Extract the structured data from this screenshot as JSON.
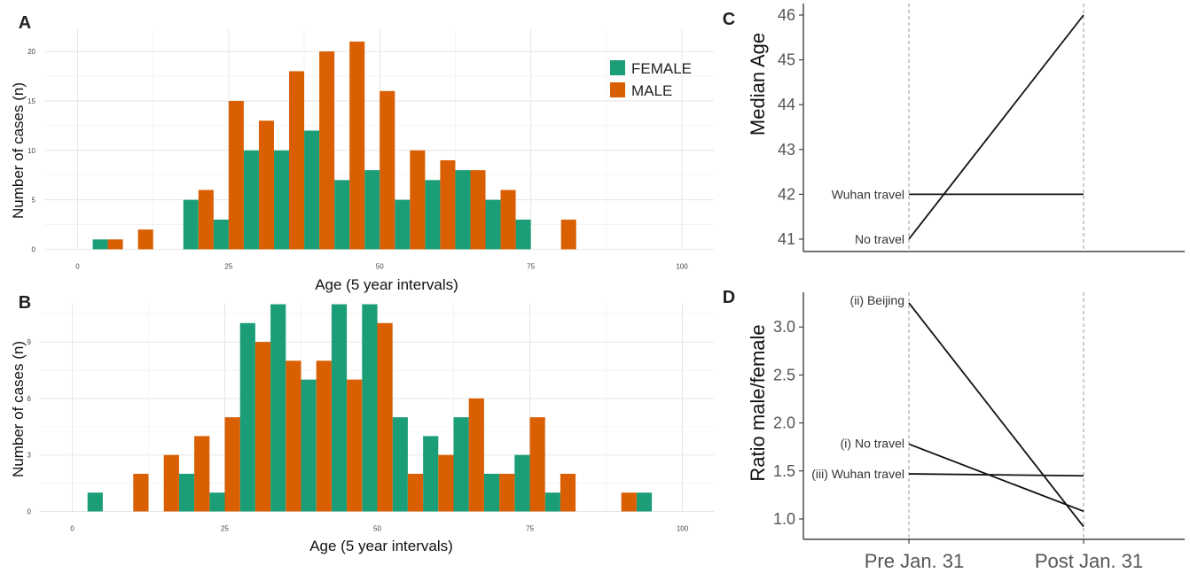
{
  "legend": [
    {
      "label": "FEMALE",
      "color": "#1b9e77"
    },
    {
      "label": "MALE",
      "color": "#d95f02"
    }
  ],
  "chart_data": [
    {
      "panel_label": "A",
      "type": "bar",
      "xlabel": "Age (5 year intervals)",
      "ylabel": "Number of cases (n)",
      "xlim": [
        0,
        100
      ],
      "ylim": [
        0,
        21
      ],
      "xticks": [
        0,
        25,
        50,
        75,
        100
      ],
      "yticks": [
        0,
        5,
        10,
        15,
        20
      ],
      "grid": true,
      "legend_position": "top-right",
      "bin_width": 5,
      "series": [
        {
          "name": "FEMALE",
          "color": "#1b9e77",
          "x": [
            5,
            20,
            25,
            30,
            35,
            40,
            45,
            50,
            55,
            60,
            65,
            70,
            75
          ],
          "values": [
            1,
            5,
            3,
            10,
            10,
            12,
            7,
            8,
            5,
            7,
            8,
            5,
            3
          ]
        },
        {
          "name": "MALE",
          "color": "#d95f02",
          "x": [
            5,
            10,
            20,
            25,
            30,
            35,
            40,
            45,
            50,
            55,
            60,
            65,
            70,
            80
          ],
          "values": [
            1,
            2,
            6,
            15,
            13,
            18,
            20,
            21,
            16,
            10,
            9,
            8,
            6,
            3
          ]
        }
      ]
    },
    {
      "panel_label": "B",
      "type": "bar",
      "xlabel": "Age (5 year intervals)",
      "ylabel": "Number of cases (n)",
      "xlim": [
        0,
        100
      ],
      "ylim": [
        0,
        11
      ],
      "xticks": [
        0,
        25,
        50,
        75,
        100
      ],
      "yticks": [
        0,
        3,
        6,
        9
      ],
      "grid": true,
      "bin_width": 5,
      "series": [
        {
          "name": "FEMALE",
          "color": "#1b9e77",
          "x": [
            5,
            20,
            25,
            30,
            35,
            40,
            45,
            50,
            55,
            60,
            65,
            70,
            75,
            80,
            95
          ],
          "values": [
            1,
            2,
            1,
            10,
            11,
            7,
            11,
            11,
            5,
            4,
            5,
            2,
            3,
            1,
            1
          ]
        },
        {
          "name": "MALE",
          "color": "#d95f02",
          "x": [
            10,
            15,
            20,
            25,
            30,
            35,
            40,
            45,
            50,
            55,
            60,
            65,
            70,
            75,
            80,
            90
          ],
          "values": [
            2,
            3,
            4,
            5,
            9,
            8,
            8,
            7,
            10,
            2,
            3,
            6,
            2,
            5,
            2,
            1
          ]
        }
      ]
    },
    {
      "panel_label": "C",
      "type": "line",
      "ylabel": "Median Age",
      "categories": [
        "Pre Jan. 31",
        "Post Jan. 31"
      ],
      "ylim": [
        41,
        46
      ],
      "yticks": [
        41,
        42,
        43,
        44,
        45,
        46
      ],
      "series": [
        {
          "name": "Wuhan travel",
          "values": [
            42,
            42
          ]
        },
        {
          "name": "No travel",
          "values": [
            41,
            46
          ]
        }
      ]
    },
    {
      "panel_label": "D",
      "type": "line",
      "ylabel": "Ratio male/female",
      "categories": [
        "Pre Jan. 31",
        "Post Jan. 31"
      ],
      "ylim": [
        1.0,
        3.0
      ],
      "yticks": [
        "1.0",
        "1.5",
        "2.0",
        "2.5",
        "3.0"
      ],
      "series": [
        {
          "name": "(ii) Beijing",
          "values": [
            3.25,
            0.92
          ]
        },
        {
          "name": "(i) No travel",
          "values": [
            1.78,
            1.08
          ]
        },
        {
          "name": "(iii) Wuhan travel",
          "values": [
            1.47,
            1.45
          ]
        }
      ]
    }
  ]
}
